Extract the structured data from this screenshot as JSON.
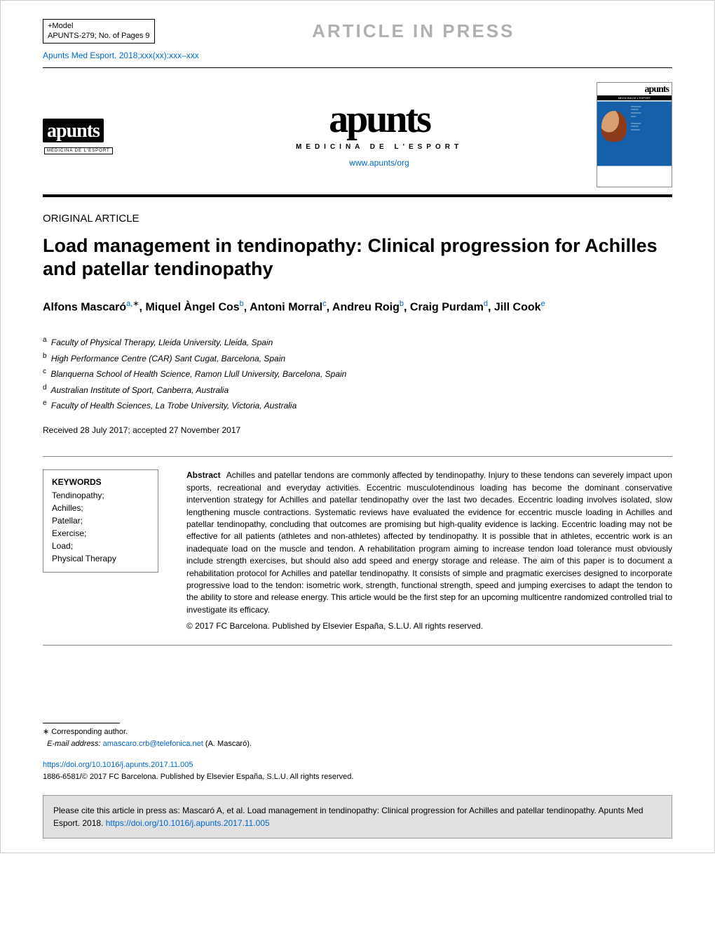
{
  "colors": {
    "link": "#0066cc",
    "banner_text": "#b0b0b0",
    "rule": "#000000",
    "box_border": "#888888",
    "cite_bg": "#e0e0e0",
    "cover_blue": "#1560a8"
  },
  "header": {
    "model_line1": "+Model",
    "model_line2": "APUNTS-279;    No. of Pages 9",
    "press_banner": "ARTICLE IN PRESS",
    "citation_preview": "Apunts Med Esport. 2018;xxx(xx):xxx–xxx"
  },
  "journal": {
    "logo_text": "apunts",
    "logo_sub": "MEDICINA DE L'ESPORT",
    "url": "www.apunts/org",
    "cover_alt": "apunts"
  },
  "article": {
    "section": "ORIGINAL ARTICLE",
    "title": "Load management in tendinopathy: Clinical progression for Achilles and patellar tendinopathy",
    "authors_html": "Alfons Mascaró<sup>a,</sup><sup class='aster'>∗</sup>, Miquel Àngel Cos<sup>b</sup>, Antoni Morral<sup>c</sup>, Andreu Roig<sup>b</sup>, Craig Purdam<sup>d</sup>, Jill Cook<sup>e</sup>",
    "affiliations": [
      {
        "sup": "a",
        "text": "Faculty of Physical Therapy, Lleida University, Lleida, Spain"
      },
      {
        "sup": "b",
        "text": "High Performance Centre (CAR) Sant Cugat, Barcelona, Spain"
      },
      {
        "sup": "c",
        "text": "Blanquerna School of Health Science, Ramon Llull University, Barcelona, Spain"
      },
      {
        "sup": "d",
        "text": "Australian Institute of Sport, Canberra, Australia"
      },
      {
        "sup": "e",
        "text": "Faculty of Health Sciences, La Trobe University, Victoria, Australia"
      }
    ],
    "dates": "Received 28 July 2017; accepted 27 November 2017"
  },
  "keywords": {
    "heading": "KEYWORDS",
    "items": [
      "Tendinopathy;",
      "Achilles;",
      "Patellar;",
      "Exercise;",
      "Load;",
      "Physical Therapy"
    ]
  },
  "abstract": {
    "label": "Abstract",
    "body": "Achilles and patellar tendons are commonly affected by tendinopathy. Injury to these tendons can severely impact upon sports, recreational and everyday activities. Eccentric musculotendinous loading has become the dominant conservative intervention strategy for Achilles and patellar tendinopathy over the last two decades. Eccentric loading involves isolated, slow lengthening muscle contractions. Systematic reviews have evaluated the evidence for eccentric muscle loading in Achilles and patellar tendinopathy, concluding that outcomes are promising but high-quality evidence is lacking. Eccentric loading may not be effective for all patients (athletes and non-athletes) affected by tendinopathy. It is possible that in athletes, eccentric work is an inadequate load on the muscle and tendon. A rehabilitation program aiming to increase tendon load tolerance must obviously include strength exercises, but should also add speed and energy storage and release. The aim of this paper is to document a rehabilitation protocol for Achilles and patellar tendinopathy. It consists of simple and pragmatic exercises designed to incorporate progressive load to the tendon: isometric work, strength, functional strength, speed and jumping exercises to adapt the tendon to the ability to store and release energy. This article would be the first step for an upcoming multicentre randomized controlled trial to investigate its efficacy.",
    "copyright": "© 2017 FC Barcelona. Published by Elsevier España, S.L.U. All rights reserved."
  },
  "footnotes": {
    "corresponding": "∗ Corresponding author.",
    "email_label": "E-mail address:",
    "email": "amascaro.crb@telefonica.net",
    "email_suffix": "(A. Mascaró)."
  },
  "doi": {
    "url": "https://doi.org/10.1016/j.apunts.2017.11.005",
    "issn_line": "1886-6581/© 2017 FC Barcelona. Published by Elsevier España, S.L.U. All rights reserved."
  },
  "cite_box": {
    "text_prefix": "Please cite this article in press as: Mascaró A, et al. Load management in tendinopathy: Clinical progression for Achilles and patellar tendinopathy. Apunts Med Esport. 2018. ",
    "link": "https://doi.org/10.1016/j.apunts.2017.11.005"
  }
}
